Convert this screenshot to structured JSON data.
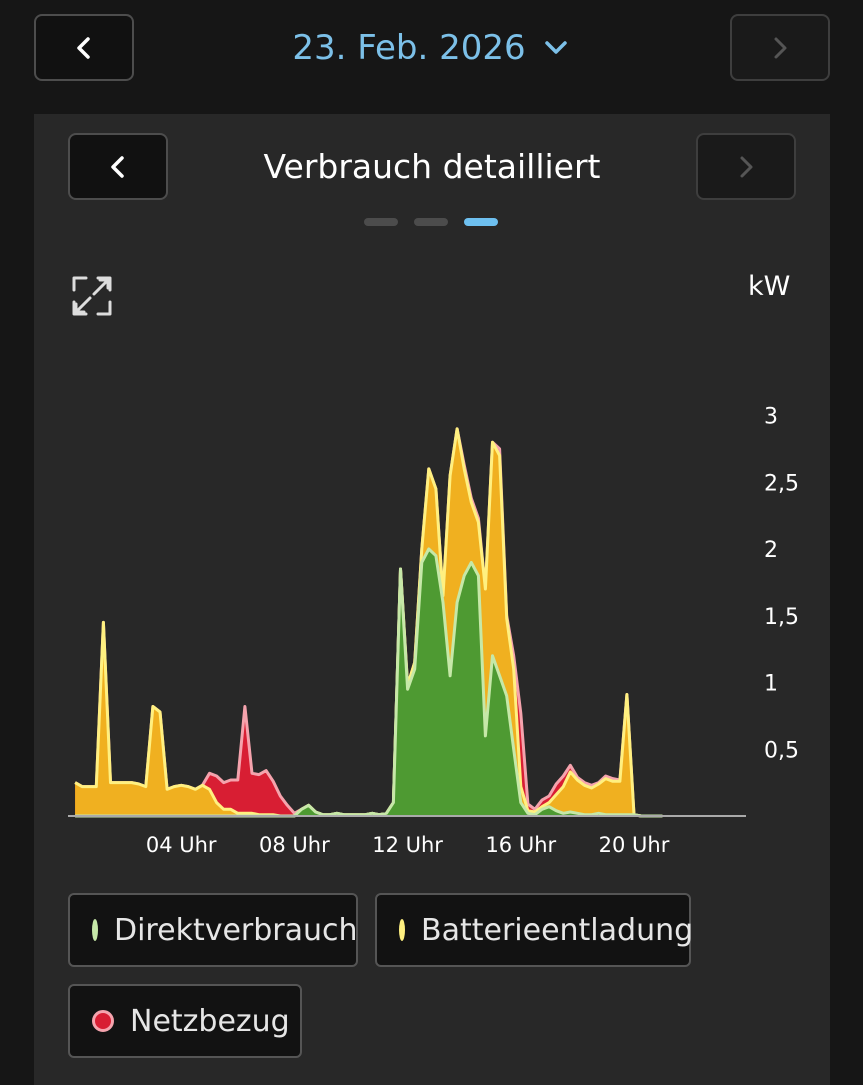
{
  "header": {
    "date_label": "23. Feb. 2026"
  },
  "card": {
    "title": "Verbrauch detailliert",
    "pagination": {
      "count": 3,
      "active": 2
    },
    "unit": "kW"
  },
  "legend": {
    "direkt": "Direktverbrauch",
    "batterie": "Batterieentladung",
    "netz": "Netzbezug"
  },
  "colors": {
    "accent": "#7cc0e8",
    "direkt": "#4e9a32",
    "direkt_line": "#c6e8a8",
    "batterie": "#f0b020",
    "batterie_line": "#fff080",
    "netz": "#d81e33",
    "netz_line": "#f5a3ad"
  },
  "chart_data": {
    "type": "area",
    "stacked": true,
    "unit": "kW",
    "ylim": [
      0,
      3.1
    ],
    "y_ticks": [
      0.5,
      1,
      1.5,
      2,
      2.5,
      3
    ],
    "y_tick_labels": [
      "0,5",
      "1",
      "1,5",
      "2",
      "2,5",
      "3"
    ],
    "xlim": [
      0,
      24
    ],
    "x_ticks": [
      4,
      8,
      12,
      16,
      20
    ],
    "x_tick_labels": [
      "04 Uhr",
      "08 Uhr",
      "12 Uhr",
      "16 Uhr",
      "20 Uhr"
    ],
    "x": [
      0.25,
      0.5,
      0.75,
      1,
      1.25,
      1.5,
      1.75,
      2,
      2.25,
      2.5,
      2.75,
      3,
      3.25,
      3.5,
      3.75,
      4,
      4.25,
      4.5,
      4.75,
      5,
      5.25,
      5.5,
      5.75,
      6,
      6.25,
      6.5,
      6.75,
      7,
      7.25,
      7.5,
      7.75,
      8,
      8.25,
      8.5,
      8.75,
      9,
      9.25,
      9.5,
      9.75,
      10,
      10.25,
      10.5,
      10.75,
      11,
      11.25,
      11.5,
      11.75,
      12,
      12.25,
      12.5,
      12.75,
      13,
      13.25,
      13.5,
      13.75,
      14,
      14.25,
      14.5,
      14.75,
      15,
      15.25,
      15.5,
      15.75,
      16,
      16.25,
      16.5,
      16.75,
      17,
      17.25,
      17.5,
      17.75,
      18,
      18.25,
      18.5,
      18.75,
      19,
      19.25,
      19.5,
      19.75,
      20,
      20.25,
      20.5,
      20.75,
      21
    ],
    "series": [
      {
        "name": "Direktverbrauch",
        "values": [
          0,
          0,
          0,
          0,
          0,
          0,
          0,
          0,
          0,
          0,
          0,
          0,
          0,
          0,
          0,
          0,
          0,
          0,
          0,
          0,
          0,
          0,
          0,
          0,
          0,
          0,
          0,
          0,
          0,
          0,
          0,
          0,
          0.05,
          0.08,
          0.03,
          0.01,
          0.01,
          0.02,
          0.01,
          0.01,
          0.01,
          0.01,
          0.02,
          0.01,
          0.02,
          0.1,
          1.85,
          0.95,
          1.1,
          1.9,
          2.0,
          1.95,
          1.6,
          1.05,
          1.6,
          1.8,
          1.9,
          1.8,
          0.6,
          1.2,
          1.05,
          0.9,
          0.5,
          0.1,
          0.02,
          0.01,
          0.05,
          0.07,
          0.04,
          0.02,
          0.03,
          0.02,
          0.01,
          0.01,
          0.02,
          0.01,
          0.01,
          0.01,
          0.01,
          0.01,
          0,
          0,
          0,
          0
        ]
      },
      {
        "name": "Batterieentladung",
        "values": [
          0.25,
          0.22,
          0.22,
          0.22,
          1.45,
          0.25,
          0.25,
          0.25,
          0.25,
          0.24,
          0.22,
          0.82,
          0.78,
          0.2,
          0.22,
          0.23,
          0.22,
          0.2,
          0.23,
          0.2,
          0.1,
          0.05,
          0.05,
          0.02,
          0.02,
          0.02,
          0.01,
          0.01,
          0.01,
          0,
          0,
          0,
          0,
          0,
          0,
          0,
          0,
          0,
          0,
          0,
          0,
          0,
          0,
          0,
          0,
          0,
          0,
          0.03,
          0.05,
          0.1,
          0.6,
          0.5,
          0.05,
          1.5,
          1.3,
          0.8,
          0.45,
          0.4,
          1.1,
          1.6,
          1.65,
          0.58,
          0.6,
          0.12,
          0.02,
          0.02,
          0.02,
          0.03,
          0.12,
          0.2,
          0.3,
          0.25,
          0.22,
          0.2,
          0.22,
          0.27,
          0.25,
          0.25,
          0.9,
          0,
          0,
          0,
          0,
          0
        ]
      },
      {
        "name": "Netzbezug",
        "values": [
          0,
          0,
          0,
          0,
          0,
          0,
          0,
          0,
          0,
          0,
          0,
          0,
          0,
          0,
          0,
          0,
          0,
          0,
          0,
          0.12,
          0.2,
          0.2,
          0.22,
          0.25,
          0.8,
          0.3,
          0.3,
          0.33,
          0.25,
          0.15,
          0.08,
          0.02,
          0,
          0,
          0,
          0,
          0,
          0,
          0,
          0,
          0,
          0,
          0,
          0,
          0,
          0,
          0,
          0,
          0,
          0,
          0,
          0,
          0,
          0,
          0,
          0.03,
          0.03,
          0.03,
          0,
          0,
          0.05,
          0.02,
          0.1,
          0.55,
          0.05,
          0.02,
          0.05,
          0.05,
          0.08,
          0.08,
          0.05,
          0.02,
          0.02,
          0.02,
          0.01,
          0.02,
          0.02,
          0.01,
          0,
          0,
          0,
          0,
          0,
          0
        ]
      }
    ]
  }
}
